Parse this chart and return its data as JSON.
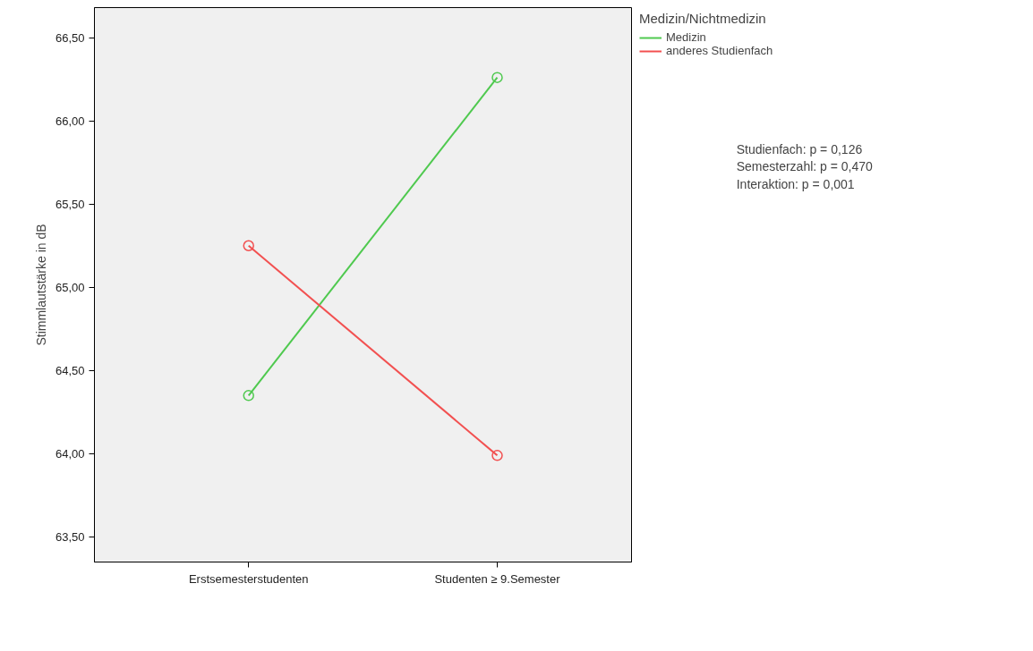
{
  "chart_data": {
    "type": "line",
    "xlabel": null,
    "ylabel": "Stimmlautstärke in dB",
    "legend_title": "Medizin/Nichtmedizin",
    "categories": [
      "Erstsemesterstudenten",
      "Studenten ≥ 9.Semester"
    ],
    "series": [
      {
        "name": "Medizin",
        "color": "#4fc94f",
        "values": [
          64.35,
          66.26
        ]
      },
      {
        "name": "anderes Studienfach",
        "color": "#f25050",
        "values": [
          65.25,
          63.99
        ]
      }
    ],
    "ylim": [
      63.35,
      66.68
    ],
    "yticks": [
      {
        "value": 63.5,
        "label": "63,50"
      },
      {
        "value": 64.0,
        "label": "64,00"
      },
      {
        "value": 64.5,
        "label": "64,50"
      },
      {
        "value": 65.0,
        "label": "65,00"
      },
      {
        "value": 65.5,
        "label": "65,50"
      },
      {
        "value": 66.0,
        "label": "66,00"
      },
      {
        "value": 66.5,
        "label": "66,50"
      }
    ],
    "grid": false,
    "legend": "top right",
    "marker": "circle",
    "line_style": "solid",
    "annotations": [
      "Studienfach:    p = 0,126",
      "Semesterzahl: p = 0,470",
      "Interaktion:     p = 0,001"
    ]
  }
}
